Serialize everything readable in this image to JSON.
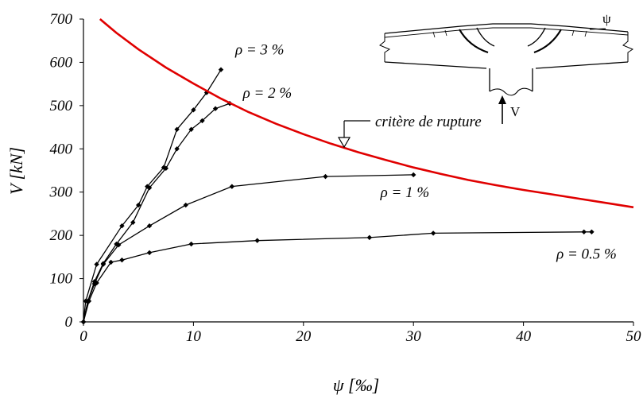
{
  "chart_data": {
    "type": "line",
    "xlabel": "ψ [‰]",
    "ylabel": "V [kN]",
    "xlim": [
      0,
      50
    ],
    "ylim": [
      0,
      700
    ],
    "x_ticks": [
      "0",
      "10",
      "20",
      "30",
      "40",
      "50"
    ],
    "y_ticks": [
      "0",
      "100",
      "200",
      "300",
      "400",
      "500",
      "600",
      "700"
    ],
    "grid": false,
    "series": [
      {
        "name": "ρ = 0.5 %",
        "x": [
          0,
          0.5,
          1.2,
          2.5,
          3.5,
          6.0,
          9.8,
          15.8,
          26.0,
          31.8,
          45.5,
          46.2
        ],
        "y": [
          0,
          48,
          90,
          138,
          143,
          160,
          180,
          188,
          195,
          205,
          208,
          208
        ]
      },
      {
        "name": "ρ = 1 %",
        "x": [
          0,
          0.4,
          1.0,
          1.8,
          3.2,
          6.0,
          9.3,
          13.5,
          22.0,
          30.0
        ],
        "y": [
          0,
          47,
          88,
          133,
          178,
          222,
          270,
          313,
          336,
          340
        ]
      },
      {
        "name": "ρ = 2 %",
        "x": [
          0,
          0.4,
          1.0,
          1.8,
          3.0,
          4.5,
          6.0,
          7.5,
          8.5,
          9.8,
          10.8,
          12.0,
          13.3
        ],
        "y": [
          0,
          48,
          93,
          135,
          180,
          230,
          310,
          355,
          400,
          445,
          465,
          493,
          505
        ]
      },
      {
        "name": "ρ = 3 %",
        "x": [
          0,
          0.2,
          1.2,
          3.5,
          5.0,
          5.8,
          7.3,
          8.5,
          10.0,
          11.2,
          12.5
        ],
        "y": [
          0,
          48,
          133,
          222,
          270,
          313,
          357,
          445,
          490,
          530,
          583
        ]
      }
    ],
    "failure_criterion": {
      "name": "critère de rupture",
      "color": "#e00000",
      "x": [
        1.5,
        3,
        5,
        7.5,
        10,
        12.5,
        15,
        17.5,
        20,
        22.5,
        25,
        27.5,
        30,
        32.5,
        35,
        37.5,
        40,
        42.5,
        45,
        47.5,
        50
      ],
      "y": [
        700,
        668,
        630,
        588,
        551,
        516,
        485,
        458,
        434,
        412,
        392,
        374,
        357,
        342,
        328,
        316,
        305,
        295,
        285,
        275,
        265
      ]
    },
    "annotations": [
      {
        "text": "ρ = 3 %",
        "x": 13.8,
        "y": 618
      },
      {
        "text": "ρ = 2 %",
        "x": 14.5,
        "y": 518
      },
      {
        "text": "ρ = 1 %",
        "x": 27.0,
        "y": 288
      },
      {
        "text": "ρ = 0.5 %",
        "x": 43.0,
        "y": 146
      }
    ],
    "criterion_label": "critère de rupture",
    "inset": {
      "psi_label": "ψ",
      "v_label": "V"
    }
  }
}
